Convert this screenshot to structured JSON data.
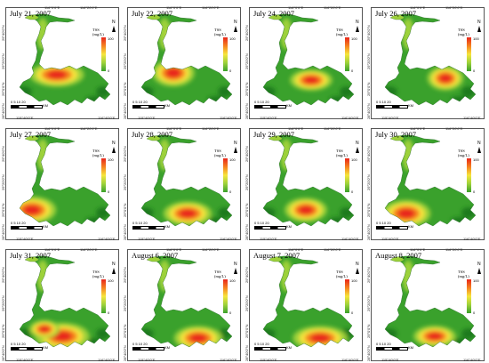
{
  "figure": {
    "panels": [
      {
        "date": "July 21, 2007",
        "variant": 0
      },
      {
        "date": "July 22, 2007",
        "variant": 1
      },
      {
        "date": "July 24, 2007",
        "variant": 2
      },
      {
        "date": "July 26, 2007",
        "variant": 3
      },
      {
        "date": "July 27, 2007",
        "variant": 4
      },
      {
        "date": "July 28, 2007",
        "variant": 5
      },
      {
        "date": "July 29, 2007",
        "variant": 6
      },
      {
        "date": "July 30, 2007",
        "variant": 7
      },
      {
        "date": "July 31, 2007",
        "variant": 8
      },
      {
        "date": "August 6, 2007",
        "variant": 9
      },
      {
        "date": "August 7, 2007",
        "variant": 10
      },
      {
        "date": "August 8, 2007",
        "variant": 11
      }
    ],
    "x_ticks": [
      "115°40'0\"E",
      "116°0'0\"E",
      "116°20'0\"E",
      "116°40'0\"E"
    ],
    "y_ticks": [
      "29°40'0\"N",
      "29°20'0\"N",
      "29°0'0\"N",
      "28°40'0\"N"
    ],
    "legend": {
      "title_line1": "TSS",
      "title_line2": "(mg/L)",
      "max": "100",
      "min": "0"
    },
    "north_label": "N",
    "scale": {
      "numbers": "0  5 10    20",
      "unit": "KM"
    },
    "colors": {
      "high": "#e8261b",
      "mid_high": "#f5821f",
      "mid": "#f6e53c",
      "mid_low": "#9dd13a",
      "low": "#3aa12c",
      "dark": "#1f7a1f"
    }
  }
}
